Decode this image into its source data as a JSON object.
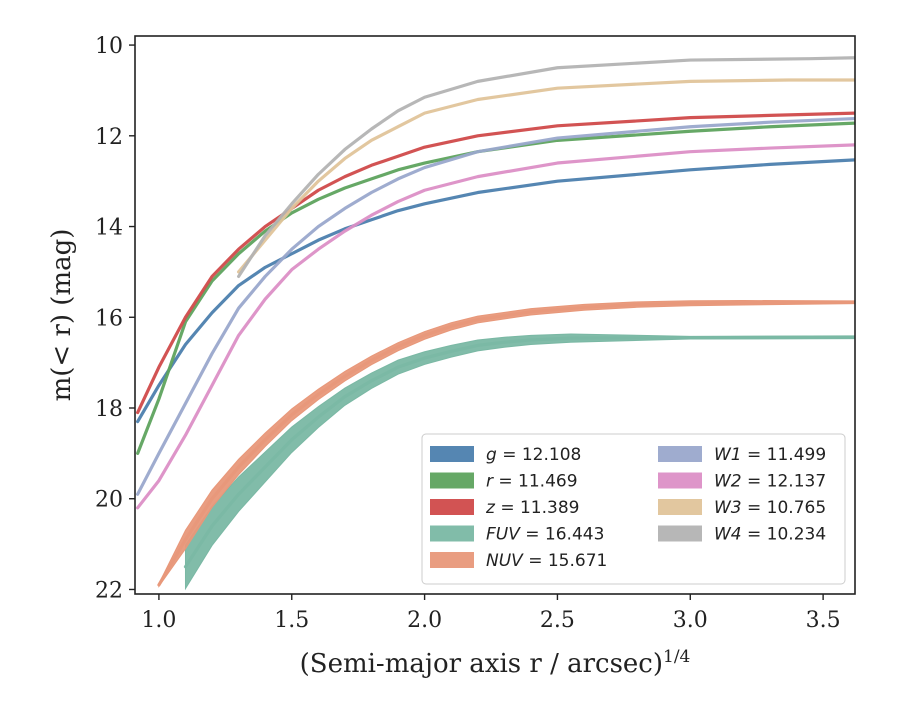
{
  "chart_data": {
    "type": "line",
    "xlabel": "(Semi-major axis r / arcsec)",
    "xlabel_sup": "1/4",
    "ylabel": "m(< r) (mag)",
    "xlim": [
      0.91,
      3.62
    ],
    "ylim": [
      22.1,
      9.8
    ],
    "y_inverted": true,
    "grid": false,
    "legend_position": "lower-right",
    "x_ticks": [
      "1.0",
      "1.5",
      "2.0",
      "2.5",
      "3.0",
      "3.5"
    ],
    "y_ticks": [
      "10",
      "12",
      "14",
      "16",
      "18",
      "20",
      "22"
    ],
    "series": [
      {
        "name": "g = 12.108",
        "band": "g",
        "value": "12.108",
        "color": "#4c7fae",
        "width": 1.0,
        "x": [
          0.92,
          1.0,
          1.1,
          1.2,
          1.3,
          1.4,
          1.5,
          1.6,
          1.7,
          1.8,
          1.9,
          2.0,
          2.2,
          2.5,
          3.0,
          3.3,
          3.62
        ],
        "y": [
          18.3,
          17.5,
          16.6,
          15.9,
          15.3,
          14.9,
          14.6,
          14.3,
          14.05,
          13.85,
          13.65,
          13.5,
          13.25,
          13.0,
          12.75,
          12.63,
          12.53
        ]
      },
      {
        "name": "r = 11.469",
        "band": "r",
        "value": "11.469",
        "color": "#5ea35e",
        "width": 1.0,
        "x": [
          0.92,
          1.0,
          1.1,
          1.2,
          1.3,
          1.4,
          1.5,
          1.6,
          1.7,
          1.8,
          1.9,
          2.0,
          2.2,
          2.5,
          3.0,
          3.3,
          3.62
        ],
        "y": [
          19.0,
          17.8,
          16.1,
          15.2,
          14.6,
          14.1,
          13.7,
          13.4,
          13.15,
          12.95,
          12.75,
          12.6,
          12.35,
          12.1,
          11.9,
          11.8,
          11.72
        ]
      },
      {
        "name": "z = 11.389",
        "band": "z",
        "value": "11.389",
        "color": "#d04a4a",
        "width": 1.0,
        "x": [
          0.92,
          1.0,
          1.1,
          1.2,
          1.3,
          1.4,
          1.5,
          1.6,
          1.7,
          1.8,
          1.9,
          2.0,
          2.2,
          2.5,
          3.0,
          3.3,
          3.62
        ],
        "y": [
          18.1,
          17.1,
          16.0,
          15.1,
          14.5,
          14.0,
          13.6,
          13.2,
          12.9,
          12.65,
          12.45,
          12.25,
          12.0,
          11.78,
          11.6,
          11.55,
          11.5
        ]
      },
      {
        "name": "FUV = 16.443",
        "band": "FUV",
        "value": "16.443",
        "color": "#7ab8a4",
        "width": 1.0,
        "x": [
          1.1,
          1.2,
          1.3,
          1.4,
          1.5,
          1.6,
          1.7,
          1.8,
          1.9,
          2.0,
          2.1,
          2.2,
          2.3,
          2.4,
          2.55,
          3.0,
          3.62
        ],
        "y": [
          21.5,
          20.6,
          19.9,
          19.3,
          18.7,
          18.2,
          17.75,
          17.4,
          17.1,
          16.9,
          16.75,
          16.62,
          16.55,
          16.5,
          16.46,
          16.45,
          16.44
        ],
        "band_width": [
          0.9,
          0.8,
          0.7,
          0.6,
          0.5,
          0.4,
          0.32,
          0.28,
          0.25,
          0.22,
          0.2,
          0.18,
          0.16,
          0.14,
          0.12,
          0.0,
          0.0
        ]
      },
      {
        "name": "NUV = 15.671",
        "band": "NUV",
        "value": "15.671",
        "color": "#e8987a",
        "width": 1.0,
        "x": [
          1.0,
          1.1,
          1.2,
          1.3,
          1.4,
          1.5,
          1.6,
          1.7,
          1.8,
          1.9,
          2.0,
          2.1,
          2.2,
          2.4,
          2.6,
          2.8,
          3.0,
          3.2,
          3.62
        ],
        "y": [
          21.9,
          20.9,
          20.0,
          19.3,
          18.7,
          18.15,
          17.7,
          17.3,
          16.95,
          16.65,
          16.4,
          16.2,
          16.05,
          15.88,
          15.78,
          15.72,
          15.69,
          15.68,
          15.67
        ],
        "band_width": [
          0.0,
          0.35,
          0.32,
          0.28,
          0.24,
          0.2,
          0.17,
          0.15,
          0.13,
          0.12,
          0.11,
          0.1,
          0.09,
          0.08,
          0.07,
          0.06,
          0.05,
          0.04,
          0.0
        ]
      },
      {
        "name": "W1 = 11.499",
        "band": "W1",
        "value": "11.499",
        "color": "#9aa8cc",
        "width": 1.0,
        "x": [
          0.92,
          1.0,
          1.1,
          1.2,
          1.3,
          1.4,
          1.5,
          1.6,
          1.7,
          1.8,
          1.9,
          2.0,
          2.2,
          2.5,
          3.0,
          3.3,
          3.62
        ],
        "y": [
          19.9,
          19.0,
          17.9,
          16.8,
          15.8,
          15.1,
          14.5,
          14.0,
          13.6,
          13.25,
          12.95,
          12.7,
          12.35,
          12.05,
          11.8,
          11.7,
          11.62
        ]
      },
      {
        "name": "W2 = 12.137",
        "band": "W2",
        "value": "12.137",
        "color": "#dc8fc6",
        "width": 1.0,
        "x": [
          0.92,
          1.0,
          1.1,
          1.2,
          1.3,
          1.4,
          1.5,
          1.6,
          1.7,
          1.8,
          1.9,
          2.0,
          2.2,
          2.5,
          3.0,
          3.3,
          3.62
        ],
        "y": [
          20.2,
          19.6,
          18.6,
          17.5,
          16.4,
          15.6,
          14.95,
          14.5,
          14.1,
          13.75,
          13.45,
          13.2,
          12.9,
          12.6,
          12.35,
          12.27,
          12.2
        ]
      },
      {
        "name": "W3 = 10.765",
        "band": "W3",
        "value": "10.765",
        "color": "#e0c49a",
        "width": 1.0,
        "x": [
          1.3,
          1.4,
          1.5,
          1.6,
          1.7,
          1.8,
          1.9,
          2.0,
          2.2,
          2.5,
          3.0,
          3.37,
          3.62
        ],
        "y": [
          15.0,
          14.3,
          13.6,
          13.0,
          12.5,
          12.1,
          11.8,
          11.5,
          11.2,
          10.95,
          10.8,
          10.77,
          10.77
        ]
      },
      {
        "name": "W4 = 10.234",
        "band": "W4",
        "value": "10.234",
        "color": "#b3b3b3",
        "width": 1.0,
        "x": [
          1.3,
          1.4,
          1.5,
          1.6,
          1.7,
          1.8,
          1.9,
          2.0,
          2.2,
          2.5,
          3.0,
          3.45,
          3.62
        ],
        "y": [
          15.1,
          14.2,
          13.5,
          12.85,
          12.3,
          11.85,
          11.45,
          11.15,
          10.8,
          10.5,
          10.33,
          10.3,
          10.28
        ]
      }
    ]
  }
}
